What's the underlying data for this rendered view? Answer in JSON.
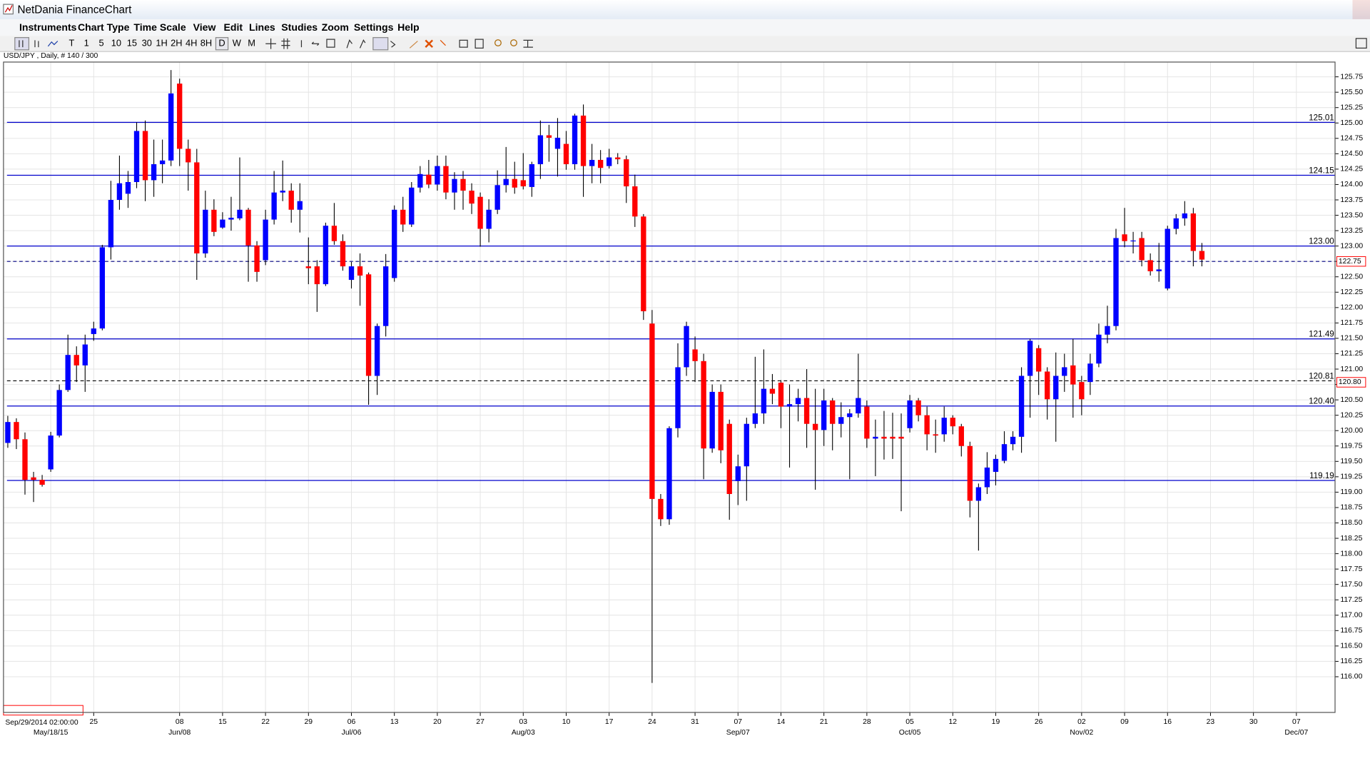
{
  "window": {
    "title": "NetDania FinanceChart"
  },
  "menu": [
    "Instruments",
    "Chart Type",
    "Time Scale",
    "View",
    "Edit",
    "Lines",
    "Studies",
    "Zoom",
    "Settings",
    "Help"
  ],
  "toolbar": [
    "T",
    "1",
    "5",
    "10",
    "15",
    "30",
    "1H",
    "2H",
    "4H",
    "8H",
    "D",
    "W",
    "M"
  ],
  "chart_data": {
    "type": "candlestick",
    "title": "USD/JPY , Daily, # 140 / 300",
    "up_color": "#0000ff",
    "down_color": "#ff0000",
    "wick_color": "#000000",
    "level_color": "#0000cc",
    "grid": true,
    "categories": [
      null,
      null,
      null,
      null,
      null,
      null,
      null,
      null,
      null,
      null,
      "25",
      null,
      null,
      null,
      null,
      null,
      null,
      null,
      null,
      null,
      "08",
      null,
      null,
      null,
      null,
      "15",
      null,
      null,
      null,
      null,
      "22",
      null,
      null,
      null,
      null,
      "29",
      null,
      null,
      null,
      null,
      "06",
      null,
      null,
      null,
      null,
      "13",
      null,
      null,
      null,
      null,
      "20",
      null,
      null,
      null,
      null,
      "27",
      null,
      null,
      null,
      null,
      "03",
      null,
      null,
      null,
      null,
      "10",
      null,
      null,
      null,
      null,
      "17",
      null,
      null,
      null,
      null,
      "24",
      null,
      null,
      null,
      null,
      "31",
      null,
      null,
      null,
      null,
      "07",
      null,
      null,
      null,
      null,
      "14",
      null,
      null,
      null,
      null,
      "21",
      null,
      null,
      null,
      null,
      "28",
      null,
      null,
      null,
      null,
      "05",
      null,
      null,
      null,
      null,
      "12",
      null,
      null,
      null,
      null,
      "19",
      null,
      null,
      null,
      null,
      "26",
      null,
      null,
      null,
      null,
      "02",
      null,
      null,
      null,
      null,
      "09",
      null,
      null,
      null,
      null,
      "16",
      null,
      null,
      null,
      null,
      "23",
      null,
      null,
      null,
      null,
      "30",
      null,
      null,
      null,
      null,
      "07",
      null,
      null,
      null,
      null
    ],
    "month_labels": [
      null,
      null,
      null,
      null,
      null,
      "May/18/15",
      null,
      null,
      null,
      null,
      null,
      null,
      null,
      null,
      null,
      null,
      null,
      null,
      null,
      null,
      "Jun/08",
      null,
      null,
      null,
      null,
      null,
      null,
      null,
      null,
      null,
      null,
      null,
      null,
      null,
      null,
      null,
      null,
      null,
      null,
      null,
      "Jul/06",
      null,
      null,
      null,
      null,
      null,
      null,
      null,
      null,
      null,
      null,
      null,
      null,
      null,
      null,
      null,
      null,
      null,
      null,
      null,
      "Aug/03",
      null,
      null,
      null,
      null,
      null,
      null,
      null,
      null,
      null,
      null,
      null,
      null,
      null,
      null,
      null,
      null,
      null,
      null,
      null,
      null,
      null,
      null,
      null,
      null,
      "Sep/07",
      null,
      null,
      null,
      null,
      null,
      null,
      null,
      null,
      null,
      null,
      null,
      null,
      null,
      null,
      null,
      null,
      null,
      null,
      null,
      "Oct/05",
      null,
      null,
      null,
      null,
      null,
      null,
      null,
      null,
      null,
      null,
      null,
      null,
      null,
      null,
      null,
      null,
      null,
      null,
      null,
      "Nov/02",
      null,
      null,
      null,
      null,
      null,
      null,
      null,
      null,
      null,
      null,
      null,
      null,
      null,
      null,
      null,
      null,
      null,
      null,
      null,
      null,
      null,
      null,
      null,
      null,
      "Dec/07",
      null,
      null,
      null,
      null
    ],
    "open": [
      119.8,
      120.14,
      119.86,
      119.24,
      119.2,
      119.37,
      119.92,
      120.66,
      121.23,
      121.06,
      121.57,
      121.66,
      122.98,
      123.75,
      123.85,
      124.04,
      124.87,
      124.07,
      124.33,
      124.39,
      125.64,
      124.58,
      124.36,
      122.88,
      123.59,
      123.3,
      123.43,
      123.45,
      123.59,
      123.01,
      122.77,
      123.43,
      123.87,
      123.9,
      123.59,
      122.67,
      122.67,
      122.38,
      123.33,
      123.08,
      122.45,
      122.67,
      122.54,
      120.89,
      121.7,
      122.48,
      123.59,
      123.35,
      123.95,
      124.16,
      124.0,
      124.3,
      123.87,
      124.09,
      123.9,
      123.8,
      123.28,
      123.59,
      123.99,
      124.09,
      124.07,
      123.96,
      124.33,
      124.8,
      124.58,
      124.66,
      124.33,
      125.12,
      124.3,
      124.4,
      124.3,
      124.44,
      124.41,
      123.97,
      123.48,
      121.74,
      118.89,
      118.56,
      120.04,
      121.03,
      121.32,
      121.13,
      119.71,
      120.63,
      120.11,
      119.18,
      119.42,
      120.11,
      120.28,
      120.68,
      120.78,
      120.39,
      120.43,
      120.53,
      120.11,
      120.01,
      120.49,
      120.11,
      120.22,
      120.28,
      120.39,
      119.87,
      119.9,
      119.9,
      119.9,
      120.04,
      120.49,
      120.25,
      119.94,
      119.94,
      120.21,
      120.07,
      119.75,
      118.86,
      119.08,
      119.33,
      119.51,
      119.78,
      119.9,
      120.89,
      121.34,
      120.96,
      120.51,
      120.89,
      121.06,
      120.79,
      120.79,
      121.09,
      121.56,
      121.7,
      123.19,
      123.08,
      123.13,
      122.77,
      122.59,
      122.31,
      123.28,
      123.45,
      123.53,
      122.92,
      null,
      null,
      null,
      null,
      null,
      null,
      null,
      null,
      null,
      null,
      null,
      null,
      null,
      null,
      null
    ],
    "high": [
      120.24,
      120.2,
      119.97,
      119.33,
      119.28,
      119.98,
      120.75,
      121.56,
      121.37,
      121.56,
      121.77,
      123.02,
      124.06,
      124.47,
      124.22,
      125.01,
      125.04,
      124.73,
      124.73,
      125.86,
      125.72,
      124.73,
      124.58,
      123.9,
      123.76,
      123.55,
      123.8,
      124.44,
      123.62,
      123.08,
      123.59,
      124.22,
      124.39,
      124.02,
      124.02,
      123.14,
      122.77,
      123.38,
      123.7,
      123.19,
      122.74,
      122.88,
      122.57,
      121.74,
      122.87,
      123.66,
      123.8,
      124.04,
      124.3,
      124.4,
      124.47,
      124.47,
      124.2,
      124.22,
      124.02,
      123.87,
      123.76,
      124.23,
      124.61,
      124.37,
      124.51,
      124.37,
      125.04,
      124.97,
      125.08,
      124.87,
      125.15,
      125.3,
      124.66,
      124.56,
      124.58,
      124.51,
      124.47,
      124.16,
      123.52,
      121.96,
      118.97,
      120.07,
      121.42,
      121.77,
      121.53,
      121.25,
      120.75,
      120.75,
      120.18,
      119.61,
      120.21,
      121.2,
      121.32,
      120.92,
      120.82,
      120.75,
      120.68,
      121.0,
      120.68,
      120.68,
      120.53,
      120.46,
      120.35,
      121.25,
      120.49,
      120.18,
      120.32,
      120.29,
      120.28,
      120.58,
      120.53,
      120.39,
      120.18,
      120.39,
      120.25,
      120.11,
      119.82,
      119.14,
      119.65,
      119.61,
      119.99,
      119.99,
      121.03,
      121.49,
      121.39,
      121.03,
      121.27,
      121.25,
      121.49,
      120.89,
      121.25,
      121.74,
      122.03,
      123.28,
      123.62,
      123.23,
      123.23,
      122.88,
      123.05,
      123.33,
      123.52,
      123.73,
      123.62,
      123.05,
      null,
      null,
      null,
      null,
      null,
      null,
      null,
      null,
      null,
      null,
      null,
      null,
      null,
      null,
      null
    ],
    "low": [
      119.72,
      119.7,
      118.96,
      118.84,
      119.09,
      119.33,
      119.89,
      120.63,
      120.79,
      120.63,
      121.46,
      121.63,
      122.78,
      123.59,
      123.62,
      123.94,
      123.73,
      123.8,
      124.02,
      124.3,
      124.3,
      123.9,
      122.45,
      122.81,
      123.16,
      123.28,
      123.25,
      123.42,
      122.42,
      122.42,
      122.69,
      123.35,
      123.73,
      123.38,
      123.22,
      122.38,
      121.93,
      122.35,
      123.02,
      122.6,
      122.31,
      122.03,
      120.42,
      120.58,
      121.53,
      122.42,
      123.23,
      123.31,
      123.87,
      123.94,
      123.9,
      123.76,
      123.59,
      123.59,
      123.52,
      122.99,
      123.06,
      123.52,
      123.87,
      123.85,
      123.92,
      123.8,
      124.09,
      124.37,
      124.13,
      124.24,
      124.24,
      123.8,
      124.02,
      124.02,
      124.26,
      124.33,
      123.7,
      123.31,
      121.8,
      115.9,
      118.45,
      118.47,
      119.89,
      120.89,
      120.79,
      119.21,
      119.64,
      119.47,
      118.55,
      118.79,
      118.86,
      120.04,
      120.11,
      120.43,
      120.04,
      119.4,
      120.15,
      119.72,
      119.04,
      119.75,
      119.68,
      119.89,
      119.21,
      120.21,
      119.72,
      119.26,
      119.53,
      119.54,
      118.69,
      119.97,
      120.15,
      119.68,
      119.64,
      119.82,
      119.94,
      119.58,
      118.59,
      118.05,
      118.97,
      119.11,
      119.47,
      119.68,
      119.64,
      120.21,
      120.58,
      120.18,
      119.82,
      120.63,
      120.21,
      120.25,
      120.58,
      121.03,
      121.42,
      121.63,
      122.98,
      122.88,
      122.67,
      122.52,
      122.42,
      122.28,
      123.19,
      123.33,
      122.67,
      122.67,
      null,
      null,
      null,
      null,
      null,
      null,
      null,
      null,
      null,
      null,
      null,
      null,
      null,
      null,
      null
    ],
    "close": [
      120.14,
      119.86,
      119.2,
      119.2,
      119.12,
      119.92,
      120.66,
      121.23,
      121.06,
      121.4,
      121.66,
      122.98,
      123.75,
      124.02,
      124.04,
      124.87,
      124.07,
      124.33,
      124.39,
      125.48,
      124.58,
      124.36,
      122.88,
      123.59,
      123.23,
      123.43,
      123.46,
      123.59,
      123.01,
      122.58,
      123.43,
      123.87,
      123.9,
      123.59,
      123.73,
      122.64,
      122.38,
      123.33,
      123.08,
      122.67,
      122.67,
      122.52,
      120.89,
      121.7,
      122.67,
      123.59,
      123.35,
      123.95,
      124.17,
      124.0,
      124.3,
      123.87,
      124.09,
      123.9,
      123.69,
      123.28,
      123.59,
      123.99,
      124.09,
      123.95,
      123.97,
      124.33,
      124.8,
      124.76,
      124.76,
      124.33,
      125.12,
      124.3,
      124.4,
      124.27,
      124.44,
      124.41,
      123.97,
      123.48,
      121.94,
      118.89,
      118.56,
      120.04,
      121.03,
      121.7,
      121.13,
      119.71,
      120.63,
      119.68,
      118.97,
      119.42,
      120.11,
      120.28,
      120.68,
      120.6,
      120.39,
      120.43,
      120.53,
      120.11,
      120.01,
      120.49,
      120.11,
      120.22,
      120.28,
      120.53,
      119.87,
      119.9,
      119.87,
      119.87,
      119.87,
      120.49,
      120.25,
      119.94,
      119.92,
      120.21,
      120.07,
      119.75,
      118.86,
      119.08,
      119.4,
      119.54,
      119.78,
      119.9,
      120.89,
      121.46,
      120.96,
      120.51,
      120.89,
      121.03,
      120.75,
      120.51,
      121.09,
      121.56,
      121.7,
      123.13,
      123.08,
      123.09,
      122.77,
      122.59,
      122.62,
      123.28,
      123.45,
      123.53,
      122.92,
      122.78,
      null,
      null,
      null,
      null,
      null,
      null,
      null,
      null,
      null,
      null,
      null,
      null,
      null,
      null,
      null
    ],
    "ylim": [
      115.42,
      125.99
    ],
    "yticks": [
      {
        "value": 116,
        "label": "116.00"
      },
      {
        "value": 116.25,
        "label": "116.25"
      },
      {
        "value": 116.5,
        "label": "116.50"
      },
      {
        "value": 116.75,
        "label": "116.75"
      },
      {
        "value": 117,
        "label": "117.00"
      },
      {
        "value": 117.25,
        "label": "117.25"
      },
      {
        "value": 117.5,
        "label": "117.50"
      },
      {
        "value": 117.75,
        "label": "117.75"
      },
      {
        "value": 118,
        "label": "118.00"
      },
      {
        "value": 118.25,
        "label": "118.25"
      },
      {
        "value": 118.5,
        "label": "118.50"
      },
      {
        "value": 118.75,
        "label": "118.75"
      },
      {
        "value": 119,
        "label": "119.00"
      },
      {
        "value": 119.25,
        "label": "119.25"
      },
      {
        "value": 119.5,
        "label": "119.50"
      },
      {
        "value": 119.75,
        "label": "119.75"
      },
      {
        "value": 120,
        "label": "120.00"
      },
      {
        "value": 120.25,
        "label": "120.25"
      },
      {
        "value": 120.5,
        "label": "120.50"
      },
      {
        "value": 120.75,
        "label": "120.75"
      },
      {
        "value": 121,
        "label": "121.00"
      },
      {
        "value": 121.25,
        "label": "121.25"
      },
      {
        "value": 121.5,
        "label": "121.50"
      },
      {
        "value": 121.75,
        "label": "121.75"
      },
      {
        "value": 122,
        "label": "122.00"
      },
      {
        "value": 122.25,
        "label": "122.25"
      },
      {
        "value": 122.5,
        "label": "122.50"
      },
      {
        "value": 122.75,
        "label": "122.75"
      },
      {
        "value": 123,
        "label": "123.00"
      },
      {
        "value": 123.25,
        "label": "123.25"
      },
      {
        "value": 123.5,
        "label": "123.50"
      },
      {
        "value": 123.75,
        "label": "123.75"
      },
      {
        "value": 124,
        "label": "124.00"
      },
      {
        "value": 124.25,
        "label": "124.25"
      },
      {
        "value": 124.5,
        "label": "124.50"
      },
      {
        "value": 124.75,
        "label": "124.75"
      },
      {
        "value": 125,
        "label": "125.00"
      },
      {
        "value": 125.25,
        "label": "125.25"
      },
      {
        "value": 125.5,
        "label": "125.50"
      },
      {
        "value": 125.75,
        "label": "125.75"
      }
    ],
    "levels": [
      125.01,
      124.15,
      {
        "value": 123,
        "label": "123.00"
      },
      121.49,
      {
        "value": 120.4,
        "label": "120.40"
      },
      119.19
    ],
    "price_line": 122.75,
    "crosshair": {
      "y": 120.81,
      "y_box": {
        "value": 120.8,
        "label": "120.80"
      },
      "x_box": "Sep/29/2014 02:00:00"
    }
  }
}
